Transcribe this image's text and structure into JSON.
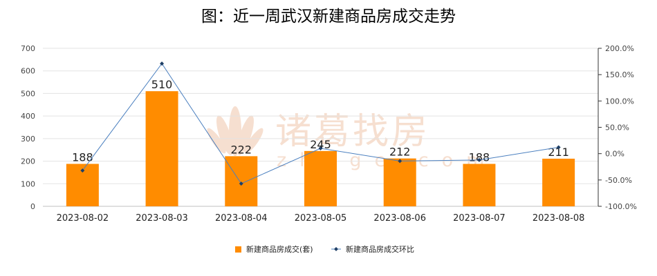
{
  "chart_data": {
    "type": "bar",
    "title": "图：近一周武汉新建商品房成交走势",
    "categories": [
      "2023-08-02",
      "2023-08-03",
      "2023-08-04",
      "2023-08-05",
      "2023-08-06",
      "2023-08-07",
      "2023-08-08"
    ],
    "series": [
      {
        "name": "新建商品房成交(套)",
        "type": "bar",
        "axis": "left",
        "color": "#FF8C00",
        "values": [
          188,
          510,
          222,
          245,
          212,
          188,
          211
        ],
        "labels": [
          "188",
          "510",
          "222",
          "245",
          "212",
          "188",
          "211"
        ]
      },
      {
        "name": "新建商品房成交环比",
        "type": "line",
        "axis": "right",
        "color": "#4A7FBF",
        "values": [
          -32,
          171,
          -57,
          10,
          -14,
          -12,
          12
        ]
      }
    ],
    "y_left": {
      "min": 0,
      "max": 700,
      "ticks": [
        "0",
        "100",
        "200",
        "300",
        "400",
        "500",
        "600",
        "700"
      ]
    },
    "y_right": {
      "min": -100,
      "max": 200,
      "ticks": [
        "-100.0%",
        "-50.0%",
        "0.0%",
        "50.0%",
        "100.0%",
        "150.0%",
        "200.0%"
      ]
    },
    "grid": true,
    "legend_position": "bottom"
  },
  "watermark": {
    "text": "诸葛找房",
    "subtext": "zhuge.com",
    "color": "#F6DCCB"
  }
}
